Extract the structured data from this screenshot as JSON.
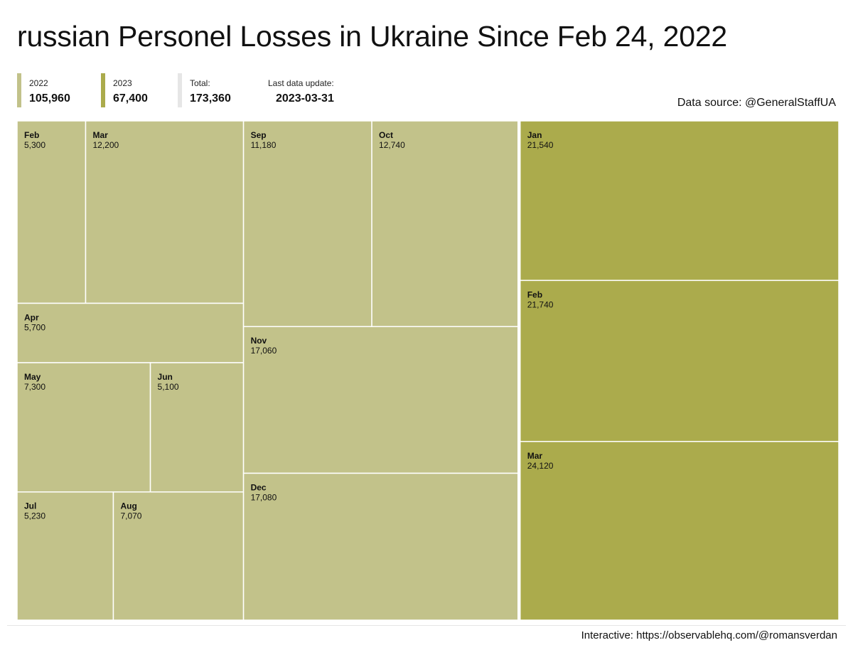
{
  "colors": {
    "year_2022": "#c2c28a",
    "year_2023": "#abab4c",
    "total": "#e6e6e6",
    "cell_border": "#ffffff"
  },
  "header": {
    "title": "russian Personel Losses in Ukraine Since Feb 24, 2022"
  },
  "stats": {
    "y2022": {
      "label": "2022",
      "value": "105,960"
    },
    "y2023": {
      "label": "2023",
      "value": "67,400"
    },
    "total": {
      "label": "Total:",
      "value": "173,360"
    },
    "update": {
      "label": "Last data update:",
      "value": "2023-03-31"
    }
  },
  "source": "Data source: @GeneralStaffUA",
  "footer": "Interactive: https://observablehq.com/@romansverdan",
  "chart_data": {
    "type": "treemap",
    "groups": [
      {
        "year": "2022",
        "total": 105960,
        "months": [
          {
            "month": "Feb",
            "label": "5,300",
            "value": 5300
          },
          {
            "month": "Mar",
            "label": "12,200",
            "value": 12200
          },
          {
            "month": "Apr",
            "label": "5,700",
            "value": 5700
          },
          {
            "month": "May",
            "label": "7,300",
            "value": 7300
          },
          {
            "month": "Jun",
            "label": "5,100",
            "value": 5100
          },
          {
            "month": "Jul",
            "label": "5,230",
            "value": 5230
          },
          {
            "month": "Aug",
            "label": "7,070",
            "value": 7070
          },
          {
            "month": "Sep",
            "label": "11,180",
            "value": 11180
          },
          {
            "month": "Oct",
            "label": "12,740",
            "value": 12740
          },
          {
            "month": "Nov",
            "label": "17,060",
            "value": 17060
          },
          {
            "month": "Dec",
            "label": "17,080",
            "value": 17080
          }
        ]
      },
      {
        "year": "2023",
        "total": 67400,
        "months": [
          {
            "month": "Jan",
            "label": "21,540",
            "value": 21540
          },
          {
            "month": "Feb",
            "label": "21,740",
            "value": 21740
          },
          {
            "month": "Mar",
            "label": "24,120",
            "value": 24120
          }
        ]
      }
    ]
  }
}
